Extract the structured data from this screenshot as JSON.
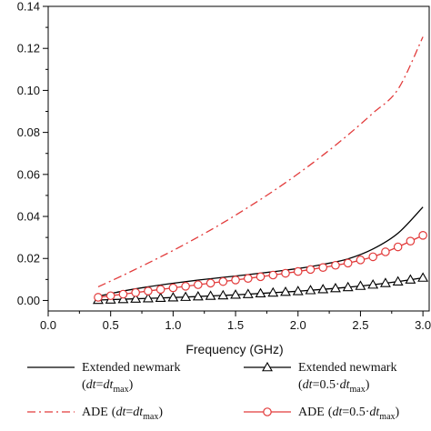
{
  "chart_data": {
    "type": "line",
    "xlabel": "Frequency (GHz)",
    "ylabel": "",
    "xlim": [
      0.0,
      3.05
    ],
    "ylim": [
      -0.005,
      0.14
    ],
    "xticks": [
      0.0,
      0.5,
      1.0,
      1.5,
      2.0,
      2.5,
      3.0
    ],
    "xtick_labels": [
      "0.0",
      "0.5",
      "1.0",
      "1.5",
      "2.0",
      "2.5",
      "3.0"
    ],
    "yticks": [
      0.0,
      0.02,
      0.04,
      0.06,
      0.08,
      0.1,
      0.12,
      0.14
    ],
    "ytick_labels": [
      "0.00",
      "0.02",
      "0.04",
      "0.06",
      "0.08",
      "0.10",
      "0.12",
      "0.14"
    ],
    "grid": false,
    "legend_position": "bottom",
    "series": [
      {
        "label_main": "Extended newmark",
        "label_args": [
          "(",
          "dt",
          "=",
          "dt",
          "max",
          ")"
        ],
        "color": "#000000",
        "line": "solid",
        "marker": "none",
        "x": [
          0.4,
          0.6,
          0.8,
          1.0,
          1.2,
          1.4,
          1.6,
          1.8,
          2.0,
          2.2,
          2.4,
          2.6,
          2.8,
          3.0
        ],
        "y": [
          0.002,
          0.0045,
          0.0065,
          0.0082,
          0.0097,
          0.011,
          0.0123,
          0.0137,
          0.0152,
          0.0172,
          0.0198,
          0.0245,
          0.032,
          0.0445
        ]
      },
      {
        "label_main": "Extended newmark",
        "label_args": [
          "(",
          "dt",
          "=0.5·",
          "dt",
          "max",
          ")"
        ],
        "color": "#000000",
        "line": "solid",
        "marker": "triangle",
        "x": [
          0.4,
          0.6,
          0.8,
          1.0,
          1.2,
          1.4,
          1.6,
          1.8,
          2.0,
          2.2,
          2.4,
          2.6,
          2.8,
          3.0
        ],
        "y": [
          0.0002,
          0.0006,
          0.001,
          0.0014,
          0.0019,
          0.0024,
          0.003,
          0.0037,
          0.0044,
          0.0053,
          0.0063,
          0.0075,
          0.009,
          0.0108
        ]
      },
      {
        "label_main": "ADE",
        "label_args": [
          "(",
          "dt",
          "=",
          "dt",
          "max",
          ")"
        ],
        "color": "#e23b3b",
        "line": "dashdot",
        "marker": "none",
        "x": [
          0.4,
          0.6,
          0.8,
          1.0,
          1.2,
          1.4,
          1.6,
          1.8,
          2.0,
          2.2,
          2.4,
          2.6,
          2.8,
          3.0
        ],
        "y": [
          0.0065,
          0.012,
          0.0178,
          0.0238,
          0.0302,
          0.037,
          0.0443,
          0.052,
          0.0603,
          0.0692,
          0.0788,
          0.0892,
          0.1005,
          0.1255
        ]
      },
      {
        "label_main": "ADE",
        "label_args": [
          "(",
          "dt",
          "=0.5·",
          "dt",
          "max",
          ")"
        ],
        "color": "#e23b3b",
        "line": "solid",
        "marker": "circle",
        "x": [
          0.4,
          0.6,
          0.8,
          1.0,
          1.2,
          1.4,
          1.6,
          1.8,
          2.0,
          2.2,
          2.4,
          2.6,
          2.8,
          3.0
        ],
        "y": [
          0.0015,
          0.003,
          0.0045,
          0.006,
          0.0075,
          0.009,
          0.0105,
          0.0121,
          0.0138,
          0.0157,
          0.0178,
          0.0208,
          0.0255,
          0.031
        ]
      }
    ]
  }
}
